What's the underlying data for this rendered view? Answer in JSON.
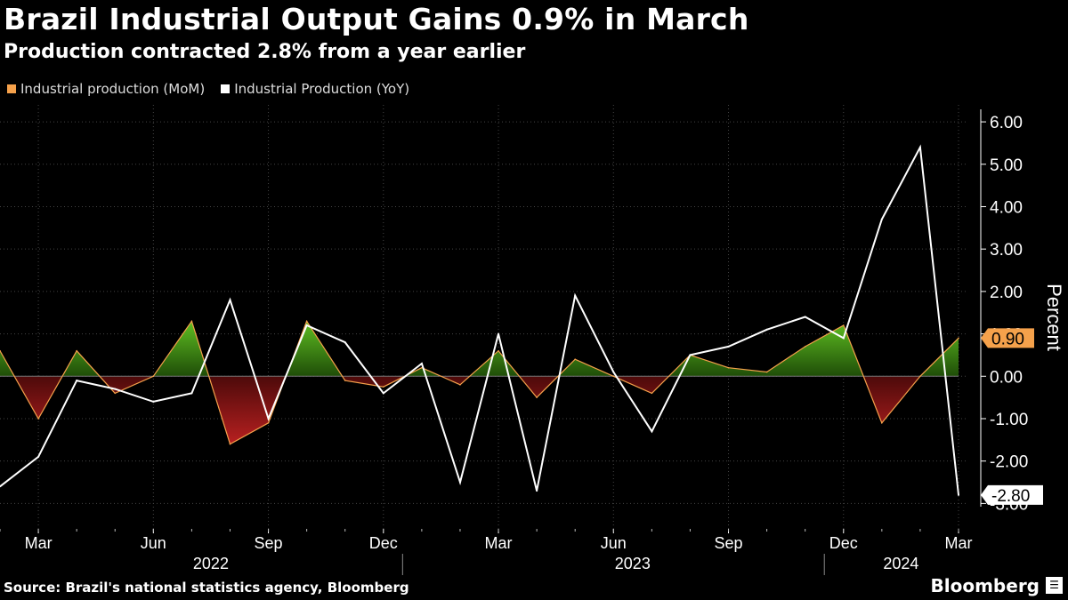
{
  "header": {
    "title": "Brazil Industrial Output Gains 0.9% in March",
    "subtitle": "Production contracted 2.8% from a year earlier"
  },
  "footer": {
    "source": "Source: Brazil's national statistics agency, Bloomberg",
    "brand": "Bloomberg",
    "brand_icon": "bloomberg-terminal-icon"
  },
  "colors": {
    "background": "#000000",
    "mom_line": "#f5a14b",
    "yoy_line": "#ffffff",
    "positive_fill": "#4a9b1c",
    "negative_fill": "#9b1c1c",
    "grid": "#444444",
    "latest_mom_badge": "#f5a14b",
    "latest_yoy_badge": "#ffffff"
  },
  "chart_data": {
    "type": "line",
    "title": "Brazil Industrial Output Gains 0.9% in March",
    "subtitle": "Production contracted 2.8% from a year earlier",
    "ylabel": "Percent",
    "ylim": [
      -3.6,
      6.4
    ],
    "yticks": [
      "6.00",
      "5.00",
      "4.00",
      "3.00",
      "2.00",
      "1.00",
      "0.00",
      "-1.00",
      "-2.00",
      "-3.00"
    ],
    "ytick_values": [
      6,
      5,
      4,
      3,
      2,
      1,
      0,
      -1,
      -2,
      -3
    ],
    "x": [
      "2022-02",
      "2022-03",
      "2022-04",
      "2022-05",
      "2022-06",
      "2022-07",
      "2022-08",
      "2022-09",
      "2022-10",
      "2022-11",
      "2022-12",
      "2023-01",
      "2023-02",
      "2023-03",
      "2023-04",
      "2023-05",
      "2023-06",
      "2023-07",
      "2023-08",
      "2023-09",
      "2023-10",
      "2023-11",
      "2023-12",
      "2024-01",
      "2024-02",
      "2024-03"
    ],
    "xticks": [
      {
        "label": "Mar",
        "index": 1
      },
      {
        "label": "Jun",
        "index": 4
      },
      {
        "label": "Sep",
        "index": 7
      },
      {
        "label": "Dec",
        "index": 10
      },
      {
        "label": "Mar",
        "index": 13
      },
      {
        "label": "Jun",
        "index": 16
      },
      {
        "label": "Sep",
        "index": 19
      },
      {
        "label": "Dec",
        "index": 22
      },
      {
        "label": "Mar",
        "index": 25
      }
    ],
    "years": [
      {
        "label": "2022",
        "center_index": 5.5
      },
      {
        "label": "2023",
        "center_index": 16.5
      },
      {
        "label": "2024",
        "center_index": 23.5
      }
    ],
    "year_separators": [
      10.5,
      21.5
    ],
    "series": [
      {
        "name": "Industrial production (MoM)",
        "color": "#f5a14b",
        "area": true,
        "values": [
          0.6,
          -1.0,
          0.6,
          -0.4,
          0.0,
          1.3,
          -1.6,
          -1.1,
          1.3,
          -0.1,
          -0.25,
          0.2,
          -0.2,
          0.6,
          -0.5,
          0.4,
          0.0,
          -0.4,
          0.5,
          0.2,
          0.1,
          0.7,
          1.2,
          -1.1,
          0.0,
          0.9
        ]
      },
      {
        "name": "Industrial Production (YoY)",
        "color": "#ffffff",
        "area": false,
        "values": [
          -2.6,
          -1.9,
          -0.1,
          -0.3,
          -0.6,
          -0.4,
          1.8,
          -1.0,
          1.2,
          0.8,
          -0.4,
          0.3,
          -2.5,
          1.0,
          -2.7,
          1.9,
          0.1,
          -1.3,
          0.5,
          0.7,
          1.1,
          1.4,
          0.9,
          3.7,
          5.4,
          -2.8
        ]
      }
    ],
    "latest_labels": [
      {
        "series": "Industrial production (MoM)",
        "text": "0.90",
        "value": 0.9
      },
      {
        "series": "Industrial Production (YoY)",
        "text": "-2.80",
        "value": -2.8
      }
    ],
    "legend_position": "top-left",
    "grid": true
  }
}
